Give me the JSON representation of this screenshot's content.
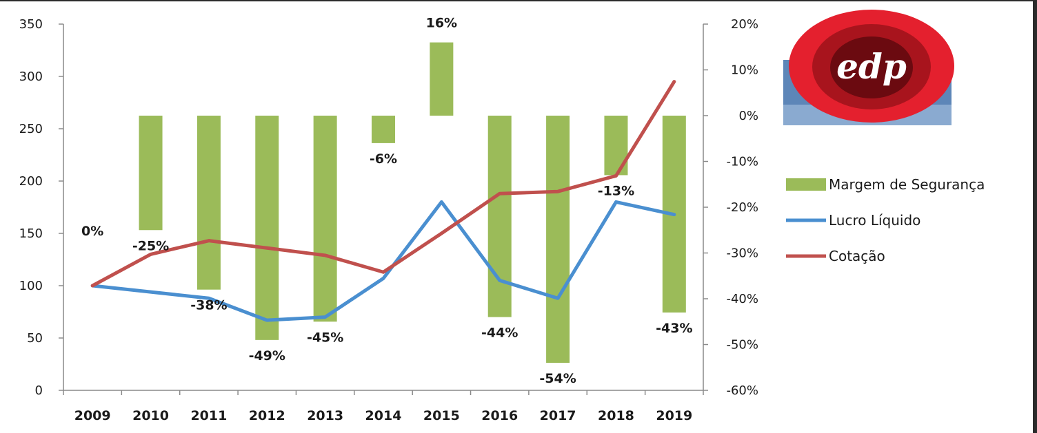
{
  "chart_data": {
    "type": "bar",
    "categories": [
      "2009",
      "2010",
      "2011",
      "2012",
      "2013",
      "2014",
      "2015",
      "2016",
      "2017",
      "2018",
      "2019"
    ],
    "left_axis": {
      "min": 0,
      "max": 350,
      "ticks": [
        0,
        50,
        100,
        150,
        200,
        250,
        300,
        350
      ]
    },
    "right_axis": {
      "min": -60,
      "max": 20,
      "ticks": [
        "-60%",
        "-50%",
        "-40%",
        "-30%",
        "-20%",
        "-10%",
        "0%",
        "10%",
        "20%"
      ]
    },
    "series": [
      {
        "name": "Margem de Segurança",
        "type": "bar",
        "axis": "right",
        "color": "#9bbb59",
        "values": [
          0,
          -25,
          -38,
          -49,
          -45,
          -6,
          16,
          -44,
          -54,
          -13,
          -43
        ],
        "labels": [
          "0%",
          "-25%",
          "-38%",
          "-49%",
          "-45%",
          "-6%",
          "16%",
          "-44%",
          "-54%",
          "-13%",
          "-43%"
        ]
      },
      {
        "name": "Lucro Líquido",
        "type": "line",
        "axis": "left",
        "color": "#4a8fd0",
        "values": [
          100,
          94,
          88,
          67,
          70,
          107,
          180,
          105,
          88,
          180,
          168
        ]
      },
      {
        "name": "Cotação",
        "type": "line",
        "axis": "left",
        "color": "#c0504d",
        "values": [
          100,
          130,
          143,
          136,
          129,
          113,
          150,
          188,
          190,
          205,
          295
        ]
      }
    ],
    "legend_position": "right",
    "grid": false
  },
  "logo": {
    "text": "edp"
  }
}
